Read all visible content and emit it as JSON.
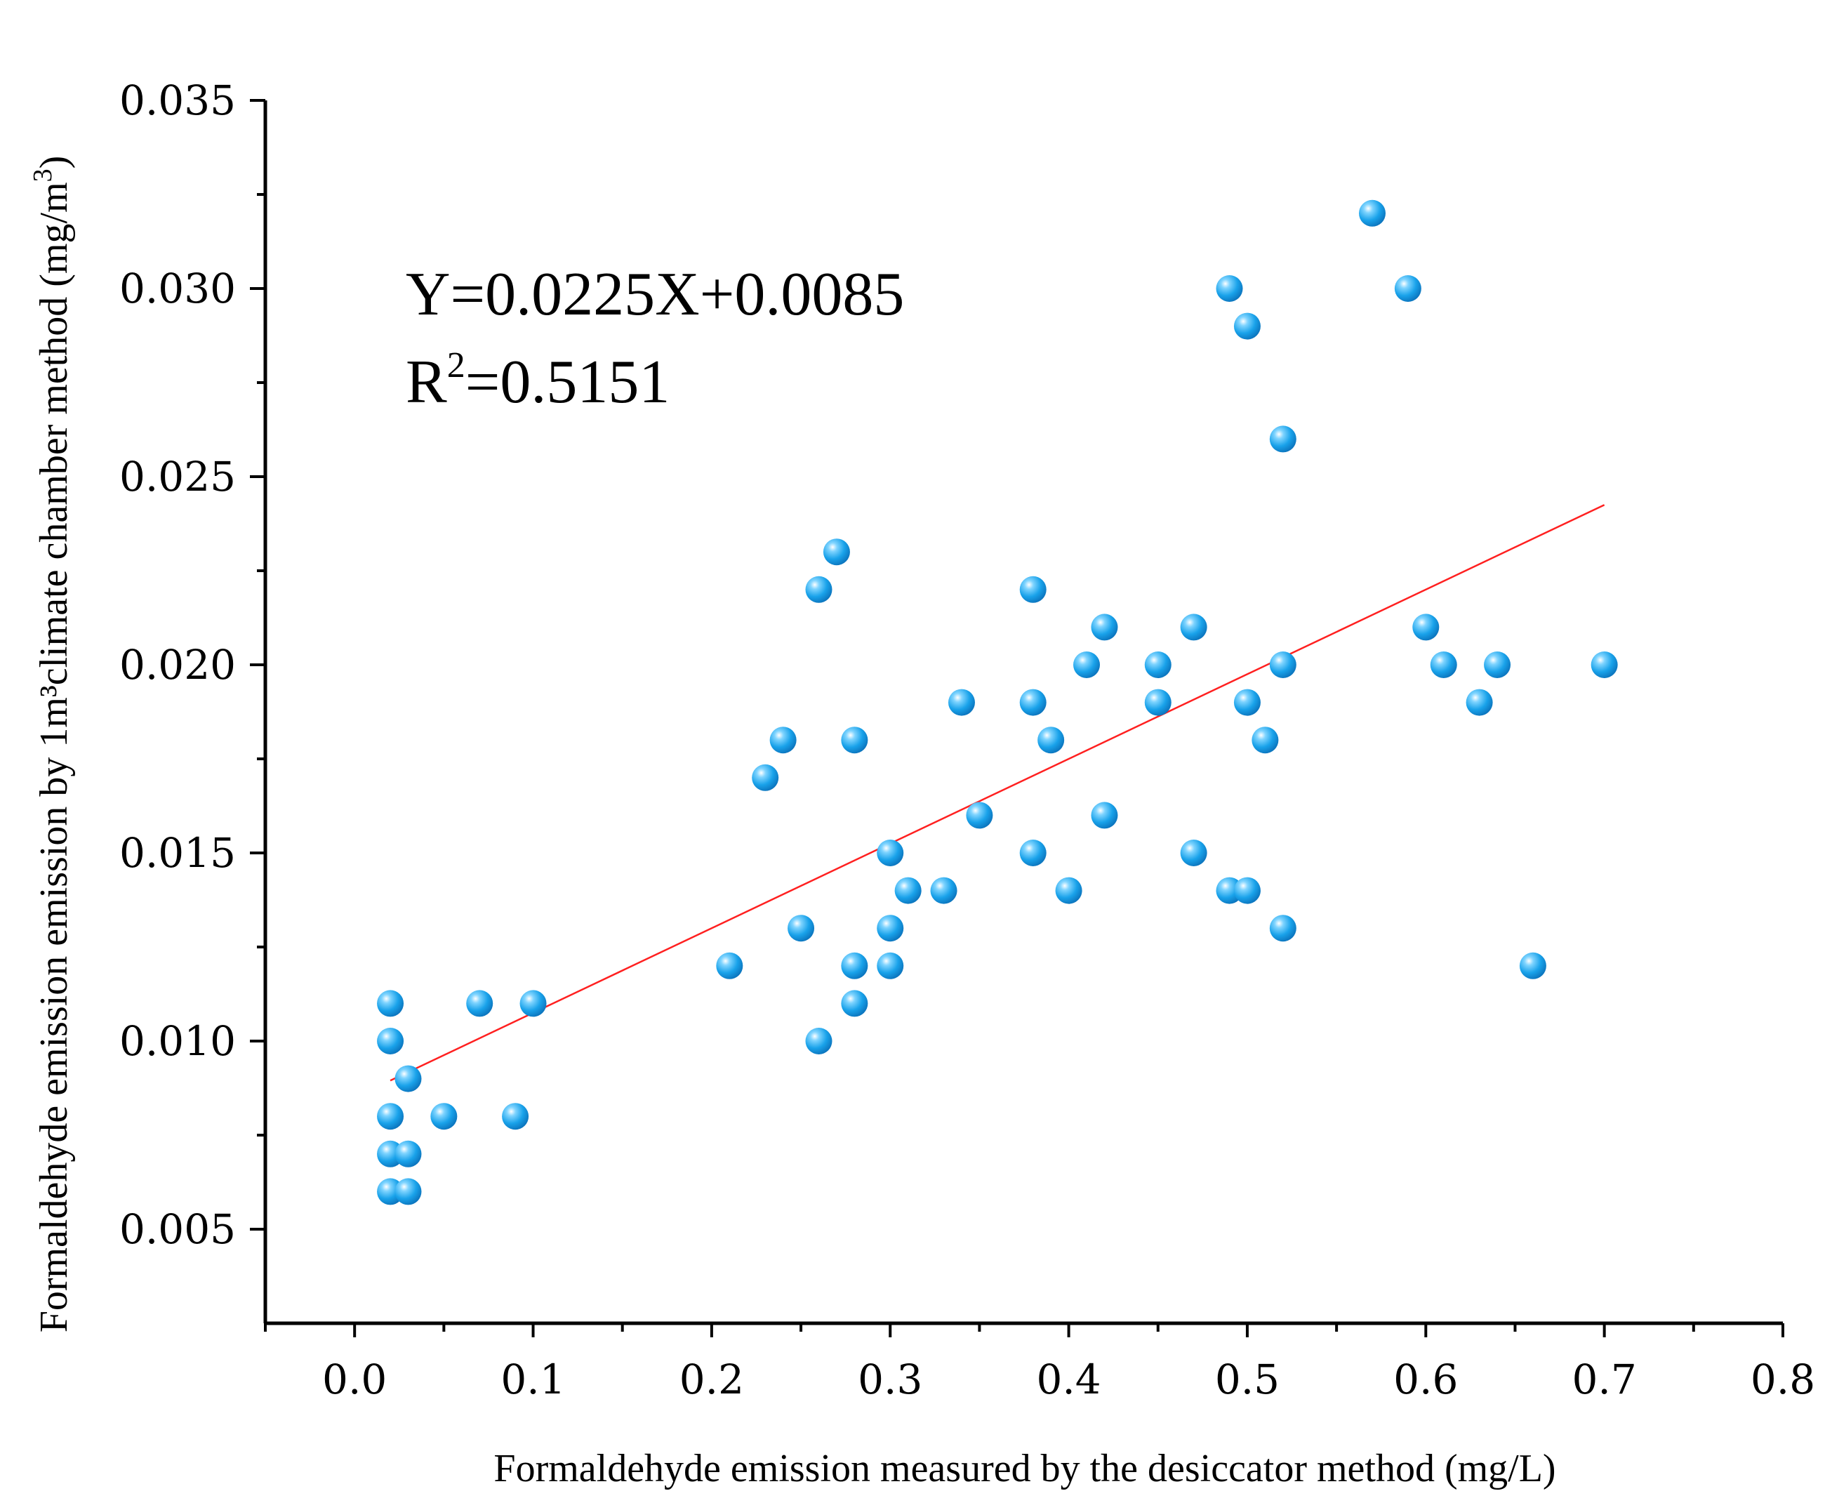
{
  "chart_data": {
    "type": "scatter",
    "title": "",
    "xlabel": "Formaldehyde emission measured by the desiccator method (mg/L)",
    "ylabel_parts": [
      "Formaldehyde emission emission by 1m³climate chamber method (mg/m",
      "3",
      ")"
    ],
    "xlim": [
      -0.05,
      0.8
    ],
    "ylim": [
      0.0025,
      0.035
    ],
    "x_ticks": [
      0.0,
      0.1,
      0.2,
      0.3,
      0.4,
      0.5,
      0.6,
      0.7,
      0.8
    ],
    "x_tick_labels": [
      "0.0",
      "0.1",
      "0.2",
      "0.3",
      "0.4",
      "0.5",
      "0.6",
      "0.7",
      "0.8"
    ],
    "y_ticks": [
      0.005,
      0.01,
      0.015,
      0.02,
      0.025,
      0.03,
      0.035
    ],
    "y_tick_labels": [
      "0.005",
      "0.010",
      "0.015",
      "0.020",
      "0.025",
      "0.030",
      "0.035"
    ],
    "marker_color": "#1aa3e8",
    "fit_line_color": "#ff2020",
    "equation": "Y=0.0225X+0.0085",
    "r2_prefix": "R",
    "r2_exp": "2",
    "r2_value": "=0.5151",
    "fit": {
      "slope": 0.0225,
      "intercept": 0.0085,
      "x_range": [
        0.02,
        0.7
      ]
    },
    "points": [
      [
        0.02,
        0.011
      ],
      [
        0.02,
        0.01
      ],
      [
        0.03,
        0.009
      ],
      [
        0.02,
        0.008
      ],
      [
        0.02,
        0.007
      ],
      [
        0.03,
        0.007
      ],
      [
        0.02,
        0.006
      ],
      [
        0.03,
        0.006
      ],
      [
        0.05,
        0.008
      ],
      [
        0.07,
        0.011
      ],
      [
        0.09,
        0.008
      ],
      [
        0.1,
        0.011
      ],
      [
        0.21,
        0.012
      ],
      [
        0.23,
        0.017
      ],
      [
        0.24,
        0.018
      ],
      [
        0.25,
        0.013
      ],
      [
        0.26,
        0.022
      ],
      [
        0.26,
        0.01
      ],
      [
        0.27,
        0.023
      ],
      [
        0.28,
        0.018
      ],
      [
        0.28,
        0.012
      ],
      [
        0.28,
        0.011
      ],
      [
        0.3,
        0.015
      ],
      [
        0.3,
        0.013
      ],
      [
        0.3,
        0.012
      ],
      [
        0.31,
        0.014
      ],
      [
        0.33,
        0.014
      ],
      [
        0.34,
        0.019
      ],
      [
        0.35,
        0.016
      ],
      [
        0.38,
        0.022
      ],
      [
        0.38,
        0.019
      ],
      [
        0.38,
        0.015
      ],
      [
        0.39,
        0.018
      ],
      [
        0.4,
        0.014
      ],
      [
        0.41,
        0.02
      ],
      [
        0.42,
        0.021
      ],
      [
        0.42,
        0.016
      ],
      [
        0.45,
        0.02
      ],
      [
        0.45,
        0.019
      ],
      [
        0.47,
        0.021
      ],
      [
        0.47,
        0.015
      ],
      [
        0.49,
        0.03
      ],
      [
        0.49,
        0.014
      ],
      [
        0.5,
        0.029
      ],
      [
        0.5,
        0.019
      ],
      [
        0.5,
        0.014
      ],
      [
        0.51,
        0.018
      ],
      [
        0.52,
        0.026
      ],
      [
        0.52,
        0.02
      ],
      [
        0.52,
        0.013
      ],
      [
        0.57,
        0.032
      ],
      [
        0.59,
        0.03
      ],
      [
        0.6,
        0.021
      ],
      [
        0.61,
        0.02
      ],
      [
        0.63,
        0.019
      ],
      [
        0.64,
        0.02
      ],
      [
        0.66,
        0.012
      ],
      [
        0.7,
        0.02
      ]
    ]
  }
}
